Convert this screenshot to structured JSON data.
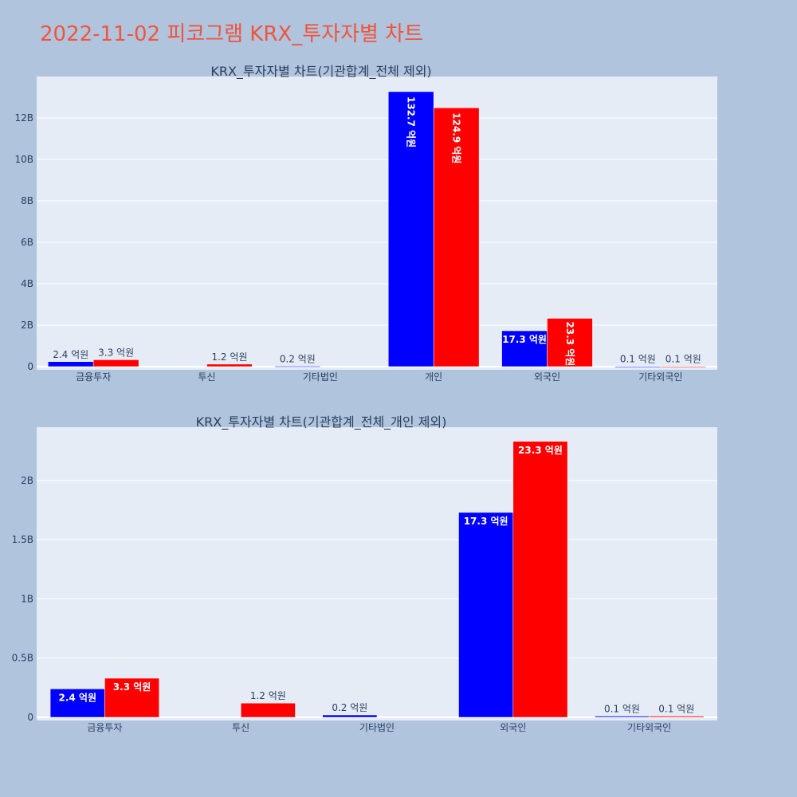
{
  "page_title": "2022-11-02 피코그램 KRX_투자자별 차트",
  "colors": {
    "background": "#b0c4de",
    "plot_background": "#e5ecf6",
    "series_1": "#0000ff",
    "series_2": "#ff0000",
    "title": "#ef553b"
  },
  "chart_data": [
    {
      "type": "bar",
      "title": "KRX_투자자별 차트(기관합계_전체 제외)",
      "categories": [
        "금융투자",
        "투신",
        "기타법인",
        "개인",
        "외국인",
        "기타외국인"
      ],
      "series": [
        {
          "values": [
            240000000,
            0,
            20000000,
            13270000000,
            1730000000,
            10000000
          ],
          "labels": [
            "2.4 억원",
            "",
            "0.2 억원",
            "132.7 억원",
            "17.3 억원",
            "0.1 억원"
          ]
        },
        {
          "values": [
            330000000,
            120000000,
            0,
            12490000000,
            2330000000,
            10000000
          ],
          "labels": [
            "3.3 억원",
            "1.2 억원",
            "",
            "124.9 억원",
            "23.3 억원",
            "0.1 억원"
          ]
        }
      ],
      "yticks": [
        0,
        2000000000,
        4000000000,
        6000000000,
        8000000000,
        10000000000,
        12000000000
      ],
      "ytick_labels": [
        "0",
        "2B",
        "4B",
        "6B",
        "8B",
        "10B",
        "12B"
      ],
      "ylim": [
        0,
        14000000000
      ],
      "grid": true,
      "legend": "none"
    },
    {
      "type": "bar",
      "title": "KRX_투자자별 차트(기관합계_전체_개인 제외)",
      "categories": [
        "금융투자",
        "투신",
        "기타법인",
        "외국인",
        "기타외국인"
      ],
      "series": [
        {
          "values": [
            240000000,
            0,
            20000000,
            1730000000,
            10000000
          ],
          "labels": [
            "2.4 억원",
            "",
            "0.2 억원",
            "17.3 억원",
            "0.1 억원"
          ]
        },
        {
          "values": [
            330000000,
            120000000,
            0,
            2330000000,
            10000000
          ],
          "labels": [
            "3.3 억원",
            "1.2 억원",
            "",
            "23.3 억원",
            "0.1 억원"
          ]
        }
      ],
      "yticks": [
        0,
        500000000,
        1000000000,
        1500000000,
        2000000000
      ],
      "ytick_labels": [
        "0",
        "0.5B",
        "1B",
        "1.5B",
        "2B"
      ],
      "ylim": [
        0,
        2450000000
      ],
      "grid": true,
      "legend": "none"
    }
  ]
}
